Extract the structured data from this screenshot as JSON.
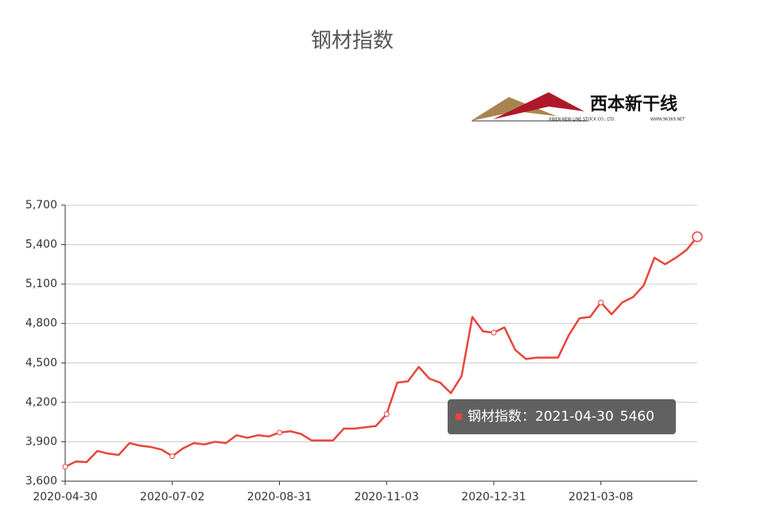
{
  "chart_data": {
    "type": "line",
    "title": "钢材指数",
    "logo": {
      "name": "西本新干线",
      "company": "XIBEN NEW LINE STOCK CO., LTD.",
      "url": "WWW.96369.NET"
    },
    "categories": [
      "2020-04-30",
      null,
      null,
      null,
      null,
      null,
      null,
      null,
      null,
      null,
      "2020-07-02",
      null,
      null,
      null,
      null,
      null,
      null,
      null,
      null,
      null,
      "2020-08-31",
      null,
      null,
      null,
      null,
      null,
      null,
      null,
      null,
      null,
      "2020-11-03",
      null,
      null,
      null,
      null,
      null,
      null,
      null,
      null,
      null,
      "2020-12-31",
      null,
      null,
      null,
      null,
      null,
      null,
      null,
      null,
      null,
      "2021-03-08",
      null,
      null,
      null,
      null,
      null,
      null,
      null,
      null,
      "2021-04-30"
    ],
    "series": [
      {
        "name": "钢材指数",
        "color": "#e8453c",
        "values": [
          3710,
          3750,
          3745,
          3830,
          3810,
          3800,
          3890,
          3870,
          3860,
          3840,
          3790,
          3850,
          3890,
          3880,
          3900,
          3890,
          3950,
          3930,
          3950,
          3940,
          3970,
          3980,
          3960,
          3910,
          3910,
          3910,
          4000,
          4000,
          4010,
          4020,
          4110,
          4350,
          4360,
          4470,
          4380,
          4350,
          4270,
          4400,
          4850,
          4740,
          4730,
          4770,
          4600,
          4530,
          4540,
          4540,
          4540,
          4710,
          4840,
          4850,
          4960,
          4870,
          4960,
          5000,
          5090,
          5300,
          5250,
          5300,
          5360,
          5460
        ]
      }
    ],
    "ylim": [
      3600,
      5700
    ],
    "yticks": [
      {
        "value": 3600,
        "label": "3,600"
      },
      {
        "value": 3900,
        "label": "3,900"
      },
      {
        "value": 4200,
        "label": "4,200"
      },
      {
        "value": 4500,
        "label": "4,500"
      },
      {
        "value": 4800,
        "label": "4,800"
      },
      {
        "value": 5100,
        "label": "5,100"
      },
      {
        "value": 5400,
        "label": "5,400"
      },
      {
        "value": 5700,
        "label": "5,700"
      }
    ],
    "grid": true,
    "tooltip": {
      "separator": "："
    }
  }
}
